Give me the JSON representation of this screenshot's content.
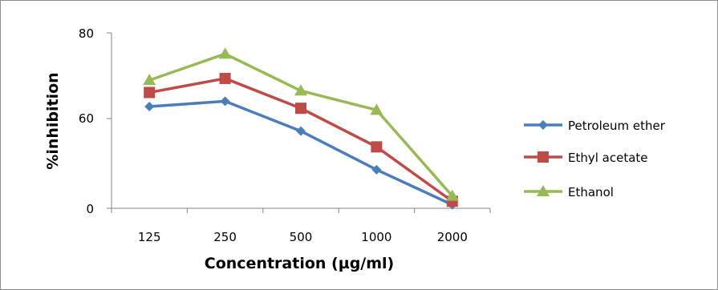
{
  "chart_data": {
    "type": "line",
    "categories": [
      "125",
      "250",
      "500",
      "1000",
      "2000"
    ],
    "series": [
      {
        "name": "Petroleum ether",
        "values": [
          58,
          61,
          44,
          22,
          2
        ],
        "color": "#4a7ebb",
        "marker": "diamond"
      },
      {
        "name": "Ethyl acetate",
        "values": [
          66,
          74,
          57,
          35,
          4
        ],
        "color": "#be4b48",
        "marker": "square"
      },
      {
        "name": "Ethanol",
        "values": [
          73,
          88,
          67,
          56,
          7
        ],
        "color": "#98b954",
        "marker": "triangle"
      }
    ],
    "xlabel": "Concentration (µg/ml)",
    "ylabel": "%inhibition",
    "yticks": [
      "0",
      "60",
      "80"
    ],
    "ylim": [
      0,
      100
    ],
    "grid": false,
    "legend": "right"
  }
}
